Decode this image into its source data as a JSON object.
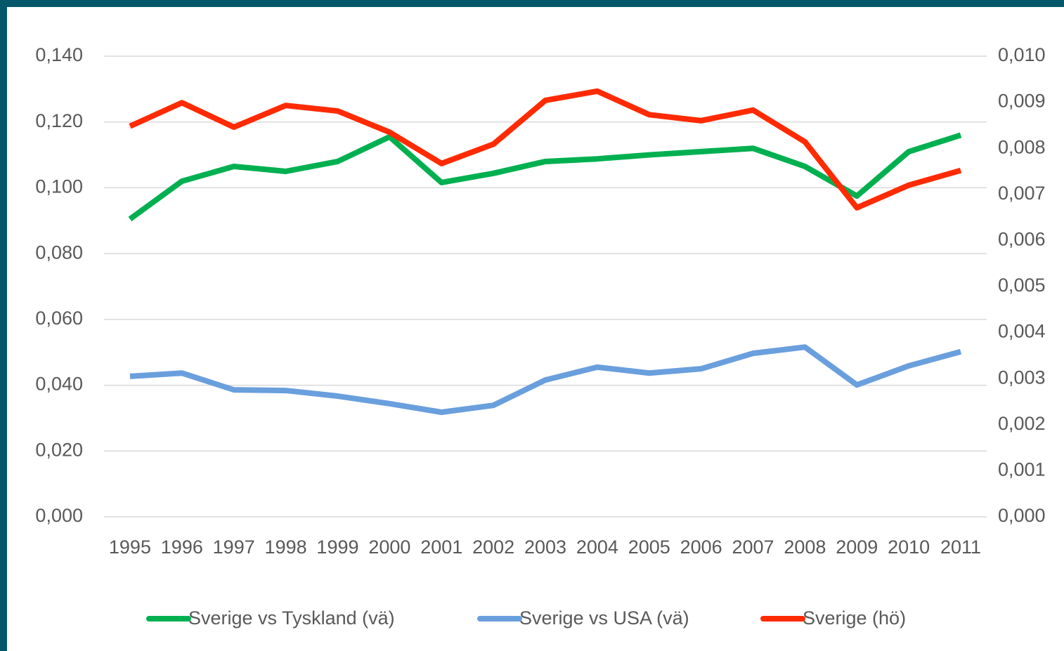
{
  "chart_data": {
    "type": "line",
    "categories": [
      "1995",
      "1996",
      "1997",
      "1998",
      "1999",
      "2000",
      "2001",
      "2002",
      "2003",
      "2004",
      "2005",
      "2006",
      "2007",
      "2008",
      "2009",
      "2010",
      "2011"
    ],
    "series": [
      {
        "name": "Sverige vs Tyskland (vä)",
        "color": "#00b050",
        "axis": "y",
        "values": [
          0.0905,
          0.102,
          0.1065,
          0.105,
          0.108,
          0.1155,
          0.1016,
          0.1044,
          0.108,
          0.1088,
          0.11,
          0.111,
          0.112,
          0.1065,
          0.0975,
          0.111,
          0.116
        ]
      },
      {
        "name": "Sverige vs USA (vä)",
        "color": "#6a9fdd",
        "axis": "y",
        "values": [
          0.0427,
          0.0437,
          0.0386,
          0.0384,
          0.0367,
          0.0344,
          0.0318,
          0.0339,
          0.0416,
          0.0455,
          0.0437,
          0.045,
          0.0497,
          0.0516,
          0.0401,
          0.0459,
          0.0502
        ]
      },
      {
        "name": "Sverige (hö)",
        "color": "#ff2a00",
        "axis": "y2",
        "values": [
          0.00848,
          0.00899,
          0.00846,
          0.00893,
          0.00881,
          0.00835,
          0.00767,
          0.00809,
          0.00904,
          0.00924,
          0.00873,
          0.0086,
          0.00883,
          0.00814,
          0.00671,
          0.0072,
          0.00752
        ]
      }
    ],
    "ylim": [
      0,
      0.14
    ],
    "yticks": [
      {
        "value": 0,
        "label": "0,000"
      },
      {
        "value": 0.02,
        "label": "0,020"
      },
      {
        "value": 0.04,
        "label": "0,040"
      },
      {
        "value": 0.06,
        "label": "0,060"
      },
      {
        "value": 0.08,
        "label": "0,080"
      },
      {
        "value": 0.1,
        "label": "0,100"
      },
      {
        "value": 0.12,
        "label": "0,120"
      },
      {
        "value": 0.14,
        "label": "0,140"
      }
    ],
    "y2lim": [
      0,
      0.01
    ],
    "y2ticks": [
      {
        "value": 0,
        "label": "0,000"
      },
      {
        "value": 0.001,
        "label": "0,001"
      },
      {
        "value": 0.002,
        "label": "0,002"
      },
      {
        "value": 0.003,
        "label": "0,003"
      },
      {
        "value": 0.004,
        "label": "0,004"
      },
      {
        "value": 0.005,
        "label": "0,005"
      },
      {
        "value": 0.006,
        "label": "0,006"
      },
      {
        "value": 0.007,
        "label": "0,007"
      },
      {
        "value": 0.008,
        "label": "0,008"
      },
      {
        "value": 0.009,
        "label": "0,009"
      },
      {
        "value": 0.01,
        "label": "0,010"
      }
    ],
    "grid": true,
    "legend": "bottom"
  }
}
